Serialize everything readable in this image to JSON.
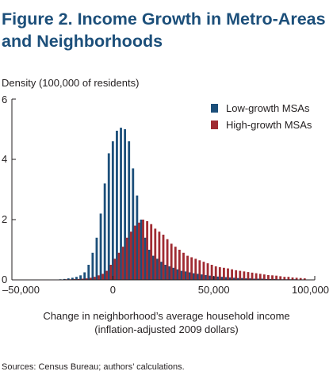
{
  "figure": {
    "title_line1": "Figure 2. Income Growth in Metro-Areas",
    "title_line2": "and Neighborhoods",
    "source": "Sources: Census Bureau; authors’ calculations."
  },
  "colors": {
    "low": "#1c4f7a",
    "high": "#a02b32",
    "axis": "#231f20",
    "title": "#1c4f7a"
  },
  "chart_data": {
    "type": "bar",
    "ylabel": "Density (100,000 of residents)",
    "xlabel_line1": "Change in neighborhood’s average household income",
    "xlabel_line2": "(inflation-adjusted 2009 dollars)",
    "xlim": [
      -50000,
      100000
    ],
    "ylim": [
      0,
      6
    ],
    "x_ticks": [
      -50000,
      0,
      50000,
      100000
    ],
    "x_tick_labels": [
      "–50,000",
      "0",
      "50,000",
      "100,000"
    ],
    "y_ticks": [
      0,
      2,
      4,
      6
    ],
    "y_tick_labels": [
      "0",
      "2",
      "4",
      "6"
    ],
    "legend_position": "top-right",
    "grid": false,
    "bin_width": 2000,
    "series": [
      {
        "name": "Low-growth MSAs",
        "x": [
          -26000,
          -24000,
          -22000,
          -20000,
          -18000,
          -16000,
          -14000,
          -12000,
          -10000,
          -8000,
          -6000,
          -4000,
          -2000,
          0,
          2000,
          4000,
          6000,
          8000,
          10000,
          12000,
          14000,
          16000,
          18000,
          20000,
          22000,
          24000,
          26000,
          28000,
          30000,
          32000,
          34000,
          36000,
          38000,
          40000,
          42000,
          44000,
          46000,
          48000,
          50000,
          52000,
          54000,
          56000,
          58000,
          60000,
          62000,
          64000,
          66000,
          68000,
          70000,
          72000,
          74000,
          76000,
          78000,
          80000,
          82000,
          84000,
          86000,
          88000,
          90000
        ],
        "values": [
          0.02,
          0.03,
          0.05,
          0.07,
          0.1,
          0.15,
          0.25,
          0.5,
          0.9,
          1.4,
          2.2,
          3.2,
          4.2,
          4.6,
          4.95,
          5.05,
          5.0,
          4.6,
          3.7,
          2.8,
          2.0,
          1.4,
          1.0,
          0.8,
          0.7,
          0.6,
          0.5,
          0.45,
          0.4,
          0.35,
          0.3,
          0.28,
          0.25,
          0.22,
          0.2,
          0.18,
          0.16,
          0.14,
          0.12,
          0.11,
          0.1,
          0.09,
          0.08,
          0.07,
          0.06,
          0.06,
          0.05,
          0.05,
          0.04,
          0.04,
          0.04,
          0.03,
          0.03,
          0.03,
          0.02,
          0.02,
          0.02,
          0.02,
          0.02
        ]
      },
      {
        "name": "High-growth MSAs",
        "x": [
          -29000,
          -27000,
          -25000,
          -23000,
          -21000,
          -19000,
          -17000,
          -15000,
          -13000,
          -11000,
          -9000,
          -7000,
          -5000,
          -3000,
          -1000,
          1000,
          3000,
          5000,
          7000,
          9000,
          11000,
          13000,
          15000,
          17000,
          19000,
          21000,
          23000,
          25000,
          27000,
          29000,
          31000,
          33000,
          35000,
          37000,
          39000,
          41000,
          43000,
          45000,
          47000,
          49000,
          51000,
          53000,
          55000,
          57000,
          59000,
          61000,
          63000,
          65000,
          67000,
          69000,
          71000,
          73000,
          75000,
          77000,
          79000,
          81000,
          83000,
          85000,
          87000,
          89000,
          91000,
          93000,
          95000
        ],
        "values": [
          0.01,
          0.01,
          0.01,
          0.02,
          0.02,
          0.03,
          0.03,
          0.04,
          0.05,
          0.07,
          0.1,
          0.15,
          0.2,
          0.3,
          0.5,
          0.7,
          0.9,
          1.1,
          1.4,
          1.6,
          1.8,
          1.9,
          2.0,
          1.95,
          1.85,
          1.7,
          1.6,
          1.5,
          1.35,
          1.2,
          1.1,
          1.0,
          0.9,
          0.8,
          0.75,
          0.7,
          0.65,
          0.6,
          0.55,
          0.5,
          0.45,
          0.42,
          0.4,
          0.38,
          0.35,
          0.32,
          0.3,
          0.28,
          0.26,
          0.24,
          0.22,
          0.2,
          0.18,
          0.16,
          0.15,
          0.14,
          0.12,
          0.1,
          0.1,
          0.08,
          0.07,
          0.06,
          0.05
        ]
      }
    ]
  }
}
